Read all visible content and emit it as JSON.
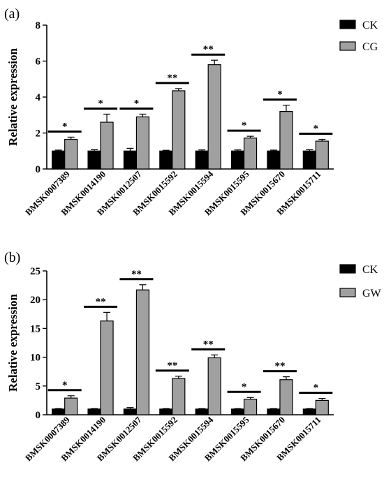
{
  "chart_data": [
    {
      "type": "bar",
      "panel_label": "(a)",
      "ylabel": "Relative expression",
      "ylim": [
        0,
        8
      ],
      "yticks": [
        "0",
        "2",
        "4",
        "6",
        "8"
      ],
      "categories": [
        "BMSK0007389",
        "BMSK0014190",
        "BMSK0012507",
        "BMSK0015592",
        "BMSK0015594",
        "BMSK0015595",
        "BMSK0015670",
        "BMSK0015711"
      ],
      "series": [
        {
          "name": "CK",
          "color": "#000000",
          "values": [
            1.0,
            1.0,
            1.0,
            1.0,
            1.0,
            1.0,
            1.0,
            1.0
          ],
          "errors": [
            0.05,
            0.07,
            0.15,
            0.04,
            0.06,
            0.06,
            0.05,
            0.07
          ]
        },
        {
          "name": "CG",
          "color": "#a0a0a0",
          "values": [
            1.65,
            2.6,
            2.9,
            4.35,
            5.8,
            1.72,
            3.2,
            1.55
          ],
          "errors": [
            0.12,
            0.45,
            0.15,
            0.12,
            0.25,
            0.1,
            0.35,
            0.1
          ]
        }
      ],
      "significance": [
        "*",
        "*",
        "*",
        "**",
        "**",
        "*",
        "*",
        "*"
      ],
      "legend_position": "top-right"
    },
    {
      "type": "bar",
      "panel_label": "(b)",
      "ylabel": "Relative expression",
      "ylim": [
        0,
        25
      ],
      "yticks": [
        "0",
        "5",
        "10",
        "15",
        "20",
        "25"
      ],
      "categories": [
        "BMSK0007389",
        "BMSK0014190",
        "BMSK0012507",
        "BMSK0015592",
        "BMSK0015594",
        "BMSK0015595",
        "BMSK0015670",
        "BMSK0015711"
      ],
      "series": [
        {
          "name": "CK",
          "color": "#000000",
          "values": [
            1.0,
            1.0,
            1.0,
            1.0,
            1.0,
            1.0,
            1.0,
            1.0
          ],
          "errors": [
            0.08,
            0.08,
            0.25,
            0.08,
            0.08,
            0.08,
            0.08,
            0.08
          ]
        },
        {
          "name": "GW",
          "color": "#a0a0a0",
          "values": [
            2.9,
            16.3,
            21.7,
            6.3,
            9.9,
            2.7,
            6.1,
            2.5
          ],
          "errors": [
            0.4,
            1.5,
            0.9,
            0.4,
            0.5,
            0.3,
            0.5,
            0.35
          ]
        }
      ],
      "significance": [
        "*",
        "**",
        "**",
        "**",
        "**",
        "*",
        "**",
        "*"
      ],
      "legend_position": "top-right"
    }
  ]
}
